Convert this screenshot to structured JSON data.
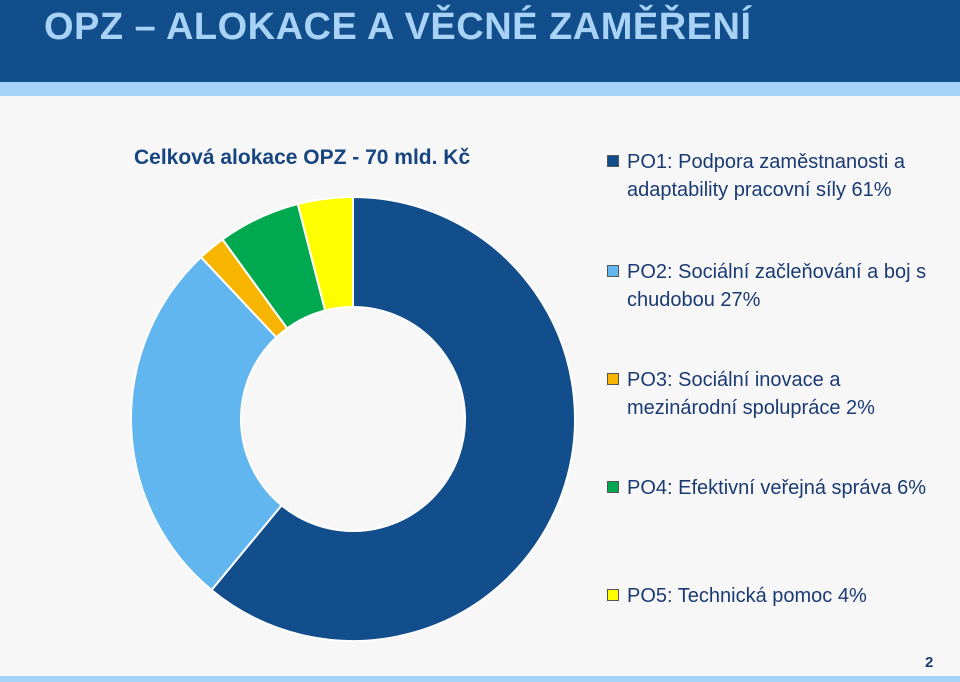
{
  "header": {
    "title": "OPZ – ALOKACE A VĚCNÉ ZAMĚŘENÍ"
  },
  "page_number": "2",
  "chart_data": {
    "type": "pie",
    "title": "Celková alokace OPZ - 70 mld. Kč",
    "donut": true,
    "legend_position": "right",
    "series": [
      {
        "name": "PO1: Podpora zaměstnanosti a adaptability pracovní síly 61%",
        "value": 61,
        "color": "#134e8c"
      },
      {
        "name": "PO2: Sociální začleňování a boj s chudobou 27%",
        "value": 27,
        "color": "#62b6f0"
      },
      {
        "name": "PO3: Sociální inovace a mezinárodní spolupráce 2%",
        "value": 2,
        "color": "#f7b500"
      },
      {
        "name": "PO4: Efektivní veřejná správa 6%",
        "value": 6,
        "color": "#00a94f"
      },
      {
        "name": "PO5: Technická pomoc 4%",
        "value": 4,
        "color": "#ffff00"
      }
    ]
  }
}
